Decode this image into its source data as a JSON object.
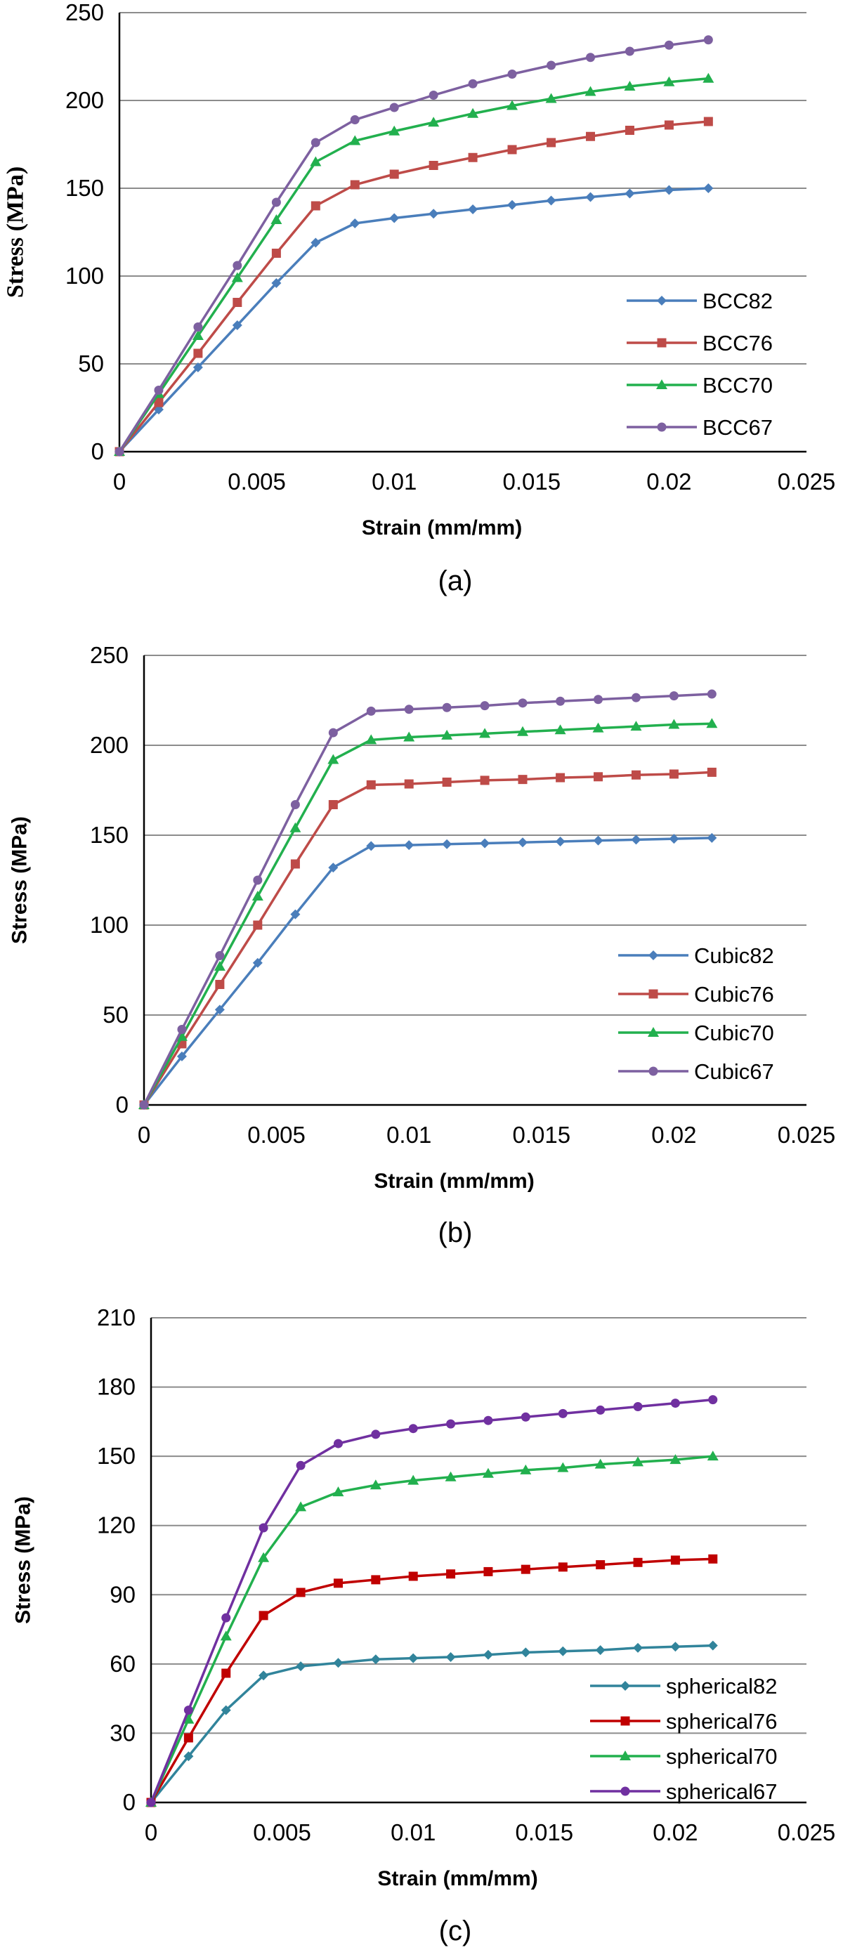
{
  "chart_data": [
    {
      "type": "line",
      "panel_label": "(a)",
      "title": "",
      "xlabel": "Strain (mm/mm)",
      "ylabel": "Stress (MPa)",
      "xlim": [
        0,
        0.025
      ],
      "ylim": [
        0,
        250
      ],
      "xticks": [
        0,
        0.005,
        0.01,
        0.015,
        0.02,
        0.025
      ],
      "xtick_labels": [
        "0",
        "0.005",
        "0.01",
        "0.015",
        "0.02",
        "0.025"
      ],
      "yticks": [
        0,
        50,
        100,
        150,
        200,
        250
      ],
      "ytick_labels": [
        "0",
        "50",
        "100",
        "150",
        "200",
        "250"
      ],
      "grid": "horizontal",
      "legend_position": "bottom-right",
      "x": [
        0,
        0.00143,
        0.00286,
        0.00429,
        0.00571,
        0.00714,
        0.00857,
        0.01,
        0.01143,
        0.01286,
        0.01429,
        0.01571,
        0.01714,
        0.01857,
        0.02,
        0.02143
      ],
      "series": [
        {
          "name": "BCC82",
          "color": "#4a7ebb",
          "marker": "diamond",
          "values": [
            0,
            24,
            48,
            72,
            96,
            119,
            130,
            133,
            135.5,
            138,
            140.5,
            143,
            145,
            147,
            149,
            150
          ]
        },
        {
          "name": "BCC76",
          "color": "#be4b48",
          "marker": "square",
          "values": [
            0,
            28,
            56,
            85,
            113,
            140,
            152,
            158,
            163,
            167.5,
            172,
            176,
            179.5,
            183,
            186,
            188
          ]
        },
        {
          "name": "BCC70",
          "color": "#22b04e",
          "marker": "triangle",
          "values": [
            0,
            33,
            66,
            99,
            132,
            165,
            177,
            182.5,
            187.5,
            192.5,
            197,
            201,
            205,
            208,
            210.5,
            212.5
          ]
        },
        {
          "name": "BCC67",
          "color": "#7d60a0",
          "marker": "circle",
          "values": [
            0,
            35,
            71,
            106,
            142,
            176,
            189,
            196,
            203,
            209.5,
            215,
            220,
            224.5,
            228,
            231.5,
            234.5
          ]
        }
      ]
    },
    {
      "type": "line",
      "panel_label": "(b)",
      "title": "",
      "xlabel": "Strain (mm/mm)",
      "ylabel": "Stress (MPa)",
      "xlim": [
        0,
        0.025
      ],
      "ylim": [
        0,
        250
      ],
      "xticks": [
        0,
        0.005,
        0.01,
        0.015,
        0.02,
        0.025
      ],
      "xtick_labels": [
        "0",
        "0.005",
        "0.01",
        "0.015",
        "0.02",
        "0.025"
      ],
      "yticks": [
        0,
        50,
        100,
        150,
        200,
        250
      ],
      "ytick_labels": [
        "0",
        "50",
        "100",
        "150",
        "200",
        "250"
      ],
      "grid": "horizontal",
      "legend_position": "bottom-right",
      "x": [
        0,
        0.00143,
        0.00286,
        0.00429,
        0.00571,
        0.00714,
        0.00857,
        0.01,
        0.01143,
        0.01286,
        0.01429,
        0.01571,
        0.01714,
        0.01857,
        0.02,
        0.02143
      ],
      "series": [
        {
          "name": "Cubic82",
          "color": "#4a7ebb",
          "marker": "diamond",
          "values": [
            0,
            27,
            53,
            79,
            106,
            132,
            144,
            144.5,
            145,
            145.5,
            146,
            146.5,
            147,
            147.5,
            148,
            148.5
          ]
        },
        {
          "name": "Cubic76",
          "color": "#be4b48",
          "marker": "square",
          "values": [
            0,
            34,
            67,
            100,
            134,
            167,
            178,
            178.5,
            179.5,
            180.5,
            181,
            182,
            182.5,
            183.5,
            184,
            185
          ]
        },
        {
          "name": "Cubic70",
          "color": "#22b04e",
          "marker": "triangle",
          "values": [
            0,
            38,
            77,
            116,
            154,
            192,
            203,
            204.5,
            205.5,
            206.5,
            207.5,
            208.5,
            209.5,
            210.5,
            211.5,
            212
          ]
        },
        {
          "name": "Cubic67",
          "color": "#7d60a0",
          "marker": "circle",
          "values": [
            0,
            42,
            83,
            125,
            167,
            207,
            219,
            220,
            221,
            222,
            223.5,
            224.5,
            225.5,
            226.5,
            227.5,
            228.5
          ]
        }
      ]
    },
    {
      "type": "line",
      "panel_label": "(c)",
      "title": "",
      "xlabel": "Strain (mm/mm)",
      "ylabel": "Stress (MPa)",
      "xlim": [
        0,
        0.025
      ],
      "ylim": [
        0,
        210
      ],
      "xticks": [
        0,
        0.005,
        0.01,
        0.015,
        0.02,
        0.025
      ],
      "xtick_labels": [
        "0",
        "0.005",
        "0.01",
        "0.015",
        "0.02",
        "0.025"
      ],
      "yticks": [
        0,
        30,
        60,
        90,
        120,
        150,
        180,
        210
      ],
      "ytick_labels": [
        "0",
        "30",
        "60",
        "90",
        "120",
        "150",
        "180",
        "210"
      ],
      "grid": "horizontal",
      "legend_position": "bottom-right",
      "x": [
        0,
        0.00143,
        0.00286,
        0.00429,
        0.00571,
        0.00714,
        0.00857,
        0.01,
        0.01143,
        0.01286,
        0.01429,
        0.01571,
        0.01714,
        0.01857,
        0.02,
        0.02143
      ],
      "series": [
        {
          "name": "spherical82",
          "color": "#31849b",
          "marker": "diamond",
          "values": [
            0,
            20,
            40,
            55,
            59,
            60.5,
            62,
            62.5,
            63,
            64,
            65,
            65.5,
            66,
            67,
            67.5,
            68
          ]
        },
        {
          "name": "spherical76",
          "color": "#c00000",
          "marker": "square",
          "values": [
            0,
            28,
            56,
            81,
            91,
            95,
            96.5,
            98,
            99,
            100,
            101,
            102,
            103,
            104,
            105,
            105.5
          ]
        },
        {
          "name": "spherical70",
          "color": "#22b04e",
          "marker": "triangle",
          "values": [
            0,
            36,
            72,
            106,
            128,
            134.5,
            137.5,
            139.5,
            141,
            142.5,
            144,
            145,
            146.5,
            147.5,
            148.5,
            150
          ]
        },
        {
          "name": "spherical67",
          "color": "#7030a0",
          "marker": "circle",
          "values": [
            0,
            40,
            80,
            119,
            146,
            155.5,
            159.5,
            162,
            164,
            165.5,
            167,
            168.5,
            170,
            171.5,
            173,
            174.5
          ]
        }
      ]
    }
  ]
}
